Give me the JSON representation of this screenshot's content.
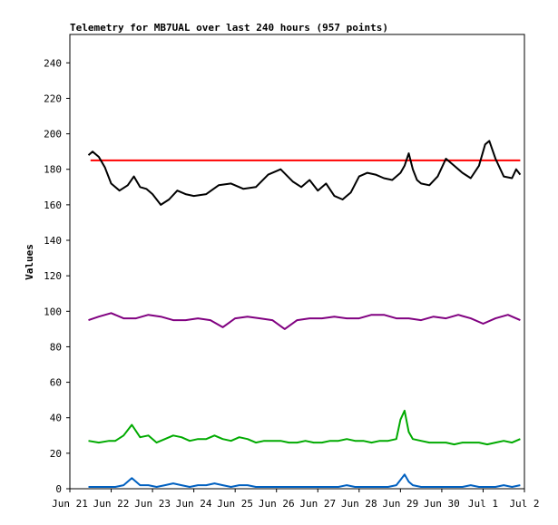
{
  "chart_data": {
    "type": "line",
    "title": "Telemetry for MB7UAL over last 240 hours (957 points)",
    "ylabel": "Values",
    "xlabel": "",
    "ylim": [
      0,
      256
    ],
    "y_ticks": [
      0,
      20,
      40,
      60,
      80,
      100,
      120,
      140,
      160,
      180,
      200,
      220,
      240
    ],
    "x_ticks": [
      "Jun 21",
      "Jun 22",
      "Jun 23",
      "Jun 24",
      "Jun 25",
      "Jun 26",
      "Jun 27",
      "Jun 28",
      "Jun 29",
      "Jun 30",
      "Jul 1",
      "Jul 2"
    ],
    "grid": false,
    "series": [
      {
        "color": "#ff0000",
        "x": [
          0.5,
          1.0,
          1.5,
          2.0,
          2.5,
          3.0,
          3.5,
          4.0,
          4.5,
          5.0,
          5.5,
          6.0,
          6.5,
          7.0,
          7.5,
          8.0,
          8.5,
          9.0,
          9.5,
          10.0,
          10.5,
          10.9
        ],
        "values": [
          185,
          185,
          185,
          185,
          185,
          185,
          185,
          185,
          185,
          185,
          185,
          185,
          185,
          185,
          185,
          185,
          185,
          185,
          185,
          185,
          185,
          185
        ]
      },
      {
        "color": "#000000",
        "x": [
          0.45,
          0.55,
          0.7,
          0.85,
          1.0,
          1.2,
          1.4,
          1.55,
          1.7,
          1.85,
          2.0,
          2.2,
          2.4,
          2.6,
          2.8,
          3.0,
          3.3,
          3.6,
          3.9,
          4.2,
          4.5,
          4.8,
          5.1,
          5.4,
          5.6,
          5.8,
          6.0,
          6.2,
          6.4,
          6.6,
          6.8,
          7.0,
          7.2,
          7.4,
          7.6,
          7.8,
          8.0,
          8.1,
          8.2,
          8.3,
          8.4,
          8.5,
          8.7,
          8.9,
          9.1,
          9.3,
          9.5,
          9.7,
          9.9,
          10.05,
          10.15,
          10.3,
          10.5,
          10.7,
          10.8,
          10.9
        ],
        "values": [
          188,
          190,
          187,
          181,
          172,
          168,
          171,
          176,
          170,
          169,
          166,
          160,
          163,
          168,
          166,
          165,
          166,
          171,
          172,
          169,
          170,
          177,
          180,
          173,
          170,
          174,
          168,
          172,
          165,
          163,
          167,
          176,
          178,
          177,
          175,
          174,
          178,
          182,
          189,
          180,
          174,
          172,
          171,
          176,
          186,
          182,
          178,
          175,
          182,
          194,
          196,
          186,
          176,
          175,
          180,
          177
        ]
      },
      {
        "color": "#800080",
        "x": [
          0.45,
          0.7,
          1.0,
          1.3,
          1.6,
          1.9,
          2.2,
          2.5,
          2.8,
          3.1,
          3.4,
          3.7,
          4.0,
          4.3,
          4.6,
          4.9,
          5.2,
          5.5,
          5.8,
          6.1,
          6.4,
          6.7,
          7.0,
          7.3,
          7.6,
          7.9,
          8.2,
          8.5,
          8.8,
          9.1,
          9.4,
          9.7,
          10.0,
          10.3,
          10.6,
          10.9
        ],
        "values": [
          95,
          97,
          99,
          96,
          96,
          98,
          97,
          95,
          95,
          96,
          95,
          91,
          96,
          97,
          96,
          95,
          90,
          95,
          96,
          96,
          97,
          96,
          96,
          98,
          98,
          96,
          96,
          95,
          97,
          96,
          98,
          96,
          93,
          96,
          98,
          95
        ]
      },
      {
        "color": "#00aa00",
        "x": [
          0.45,
          0.7,
          0.95,
          1.1,
          1.3,
          1.5,
          1.7,
          1.9,
          2.1,
          2.3,
          2.5,
          2.7,
          2.9,
          3.1,
          3.3,
          3.5,
          3.7,
          3.9,
          4.1,
          4.3,
          4.5,
          4.7,
          4.9,
          5.1,
          5.3,
          5.5,
          5.7,
          5.9,
          6.1,
          6.3,
          6.5,
          6.7,
          6.9,
          7.1,
          7.3,
          7.5,
          7.7,
          7.9,
          8.0,
          8.1,
          8.2,
          8.3,
          8.5,
          8.7,
          8.9,
          9.1,
          9.3,
          9.5,
          9.7,
          9.9,
          10.1,
          10.3,
          10.5,
          10.7,
          10.9
        ],
        "values": [
          27,
          26,
          27,
          27,
          30,
          36,
          29,
          30,
          26,
          28,
          30,
          29,
          27,
          28,
          28,
          30,
          28,
          27,
          29,
          28,
          26,
          27,
          27,
          27,
          26,
          26,
          27,
          26,
          26,
          27,
          27,
          28,
          27,
          27,
          26,
          27,
          27,
          28,
          39,
          44,
          32,
          28,
          27,
          26,
          26,
          26,
          25,
          26,
          26,
          26,
          25,
          26,
          27,
          26,
          28
        ]
      },
      {
        "color": "#0060c0",
        "x": [
          0.45,
          0.7,
          0.95,
          1.1,
          1.3,
          1.5,
          1.7,
          1.9,
          2.1,
          2.3,
          2.5,
          2.7,
          2.9,
          3.1,
          3.3,
          3.5,
          3.7,
          3.9,
          4.1,
          4.3,
          4.5,
          4.7,
          4.9,
          5.1,
          5.3,
          5.5,
          5.7,
          5.9,
          6.1,
          6.3,
          6.5,
          6.7,
          6.9,
          7.1,
          7.3,
          7.5,
          7.7,
          7.9,
          8.0,
          8.1,
          8.2,
          8.3,
          8.5,
          8.7,
          8.9,
          9.1,
          9.3,
          9.5,
          9.7,
          9.9,
          10.1,
          10.3,
          10.5,
          10.7,
          10.9
        ],
        "values": [
          1,
          1,
          1,
          1,
          2,
          6,
          2,
          2,
          1,
          2,
          3,
          2,
          1,
          2,
          2,
          3,
          2,
          1,
          2,
          2,
          1,
          1,
          1,
          1,
          1,
          1,
          1,
          1,
          1,
          1,
          1,
          2,
          1,
          1,
          1,
          1,
          1,
          2,
          5,
          8,
          4,
          2,
          1,
          1,
          1,
          1,
          1,
          1,
          2,
          1,
          1,
          1,
          2,
          1,
          2
        ]
      }
    ]
  }
}
